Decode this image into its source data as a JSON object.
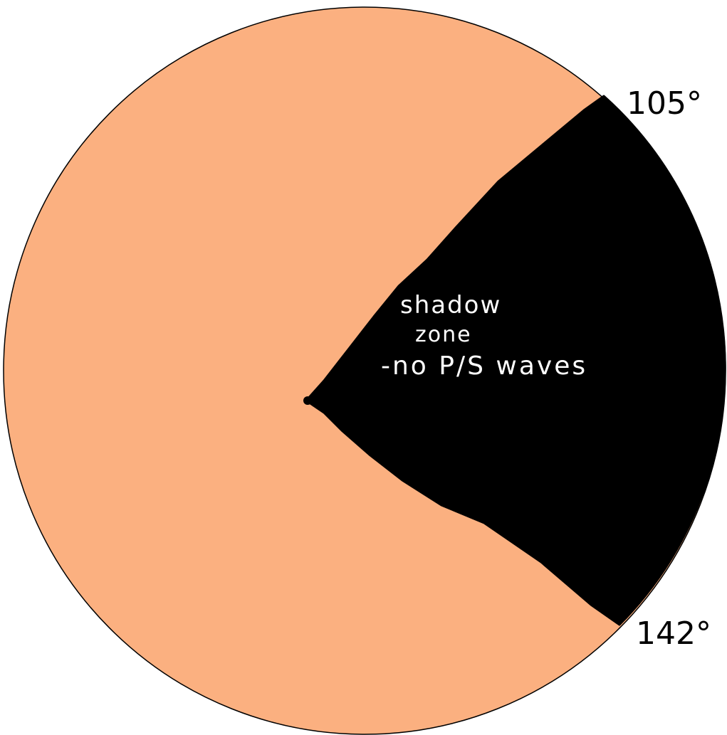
{
  "colors": {
    "background": "#ffffff",
    "circle_fill": "#FBB080",
    "circle_stroke": "#000000",
    "shadow_zone_fill": "#000000",
    "shadow_text": "#ffffff",
    "angle_label_text": "#000000"
  },
  "labels": {
    "angle_top": "105°",
    "angle_bottom": "142°",
    "shadow_line1": "shadow",
    "shadow_line2": "zone",
    "shadow_line3": "-no P/S waves"
  }
}
